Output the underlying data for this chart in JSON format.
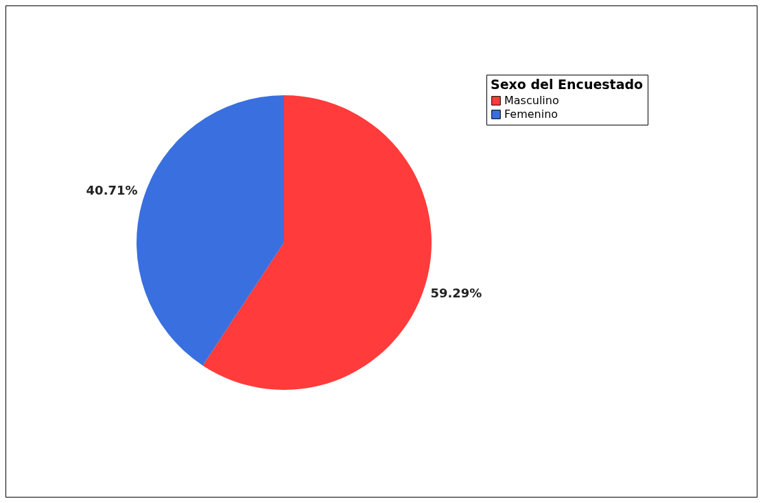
{
  "chart_data": {
    "type": "pie",
    "legend_title": "Sexo del Encuestado",
    "legend": "top right",
    "categories": [
      "Masculino",
      "Femenino"
    ],
    "values": [
      59.29,
      40.71
    ],
    "colors": [
      "#ff3b3b",
      "#3a6fdf"
    ],
    "value_labels": [
      "59.29%",
      "40.71%"
    ]
  }
}
